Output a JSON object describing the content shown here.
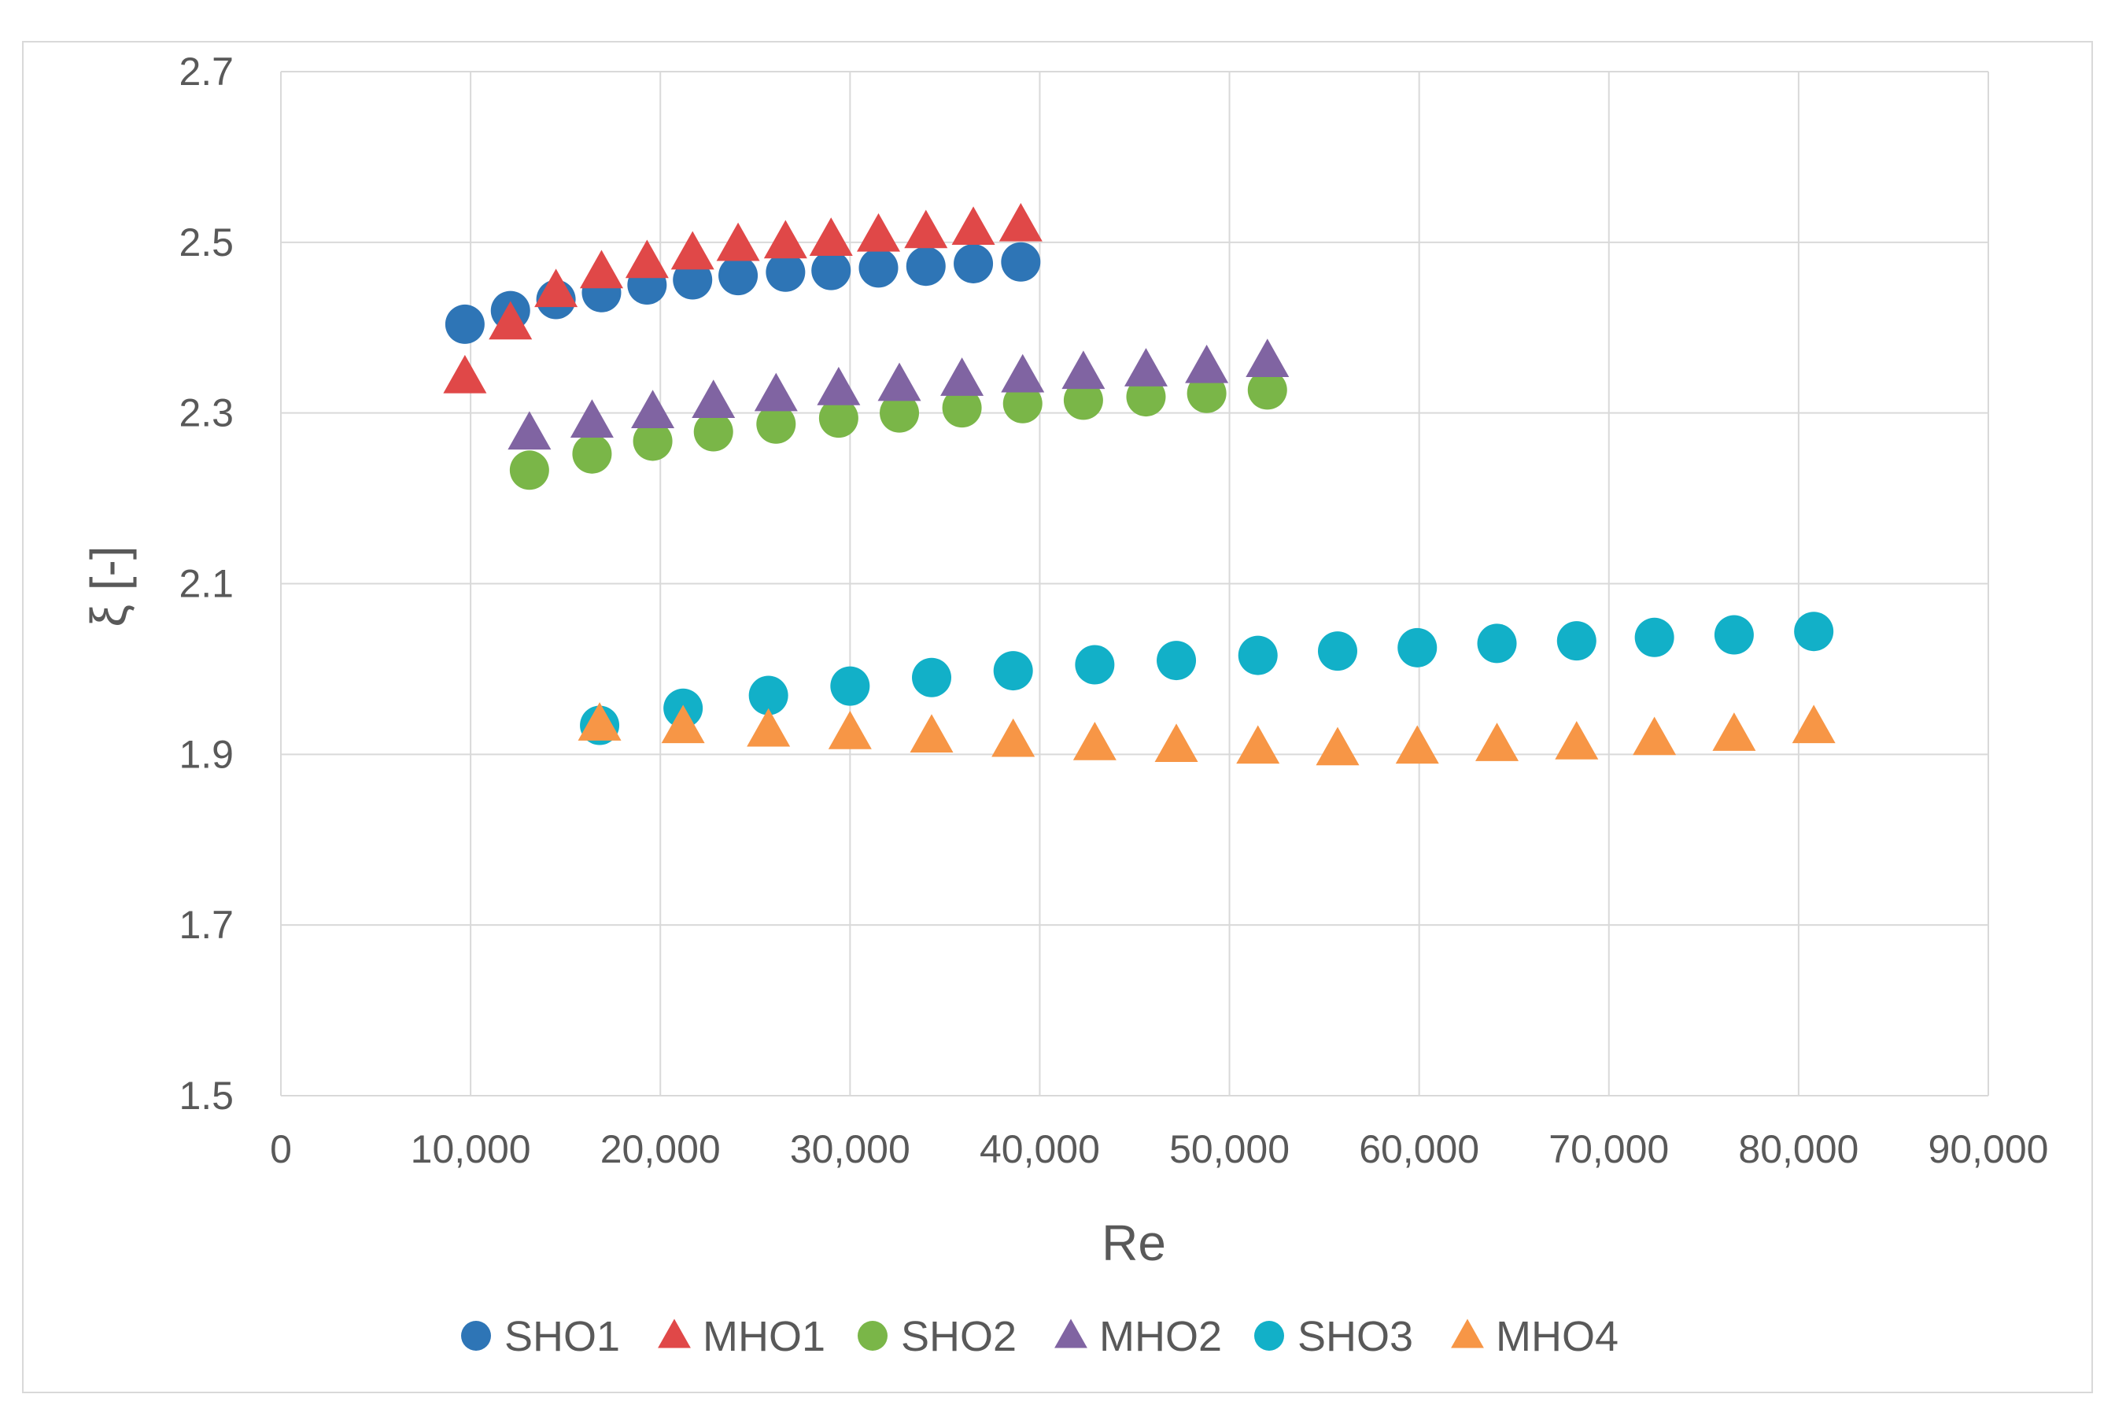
{
  "chart_data": {
    "type": "scatter",
    "title": "",
    "xlabel": "Re",
    "ylabel": "ξ [-]",
    "xlim": [
      0,
      90000
    ],
    "ylim": [
      1.5,
      2.7
    ],
    "grid": true,
    "legend_position": "bottom",
    "x_ticks": [
      {
        "value": 0,
        "label": "0"
      },
      {
        "value": 10000,
        "label": "10,000"
      },
      {
        "value": 20000,
        "label": "20,000"
      },
      {
        "value": 30000,
        "label": "30,000"
      },
      {
        "value": 40000,
        "label": "40,000"
      },
      {
        "value": 50000,
        "label": "50,000"
      },
      {
        "value": 60000,
        "label": "60,000"
      },
      {
        "value": 70000,
        "label": "70,000"
      },
      {
        "value": 80000,
        "label": "80,000"
      },
      {
        "value": 90000,
        "label": "90,000"
      }
    ],
    "y_ticks": [
      {
        "value": 1.5,
        "label": "1.5"
      },
      {
        "value": 1.7,
        "label": "1.7"
      },
      {
        "value": 1.9,
        "label": "1.9"
      },
      {
        "value": 2.1,
        "label": "2.1"
      },
      {
        "value": 2.3,
        "label": "2.3"
      },
      {
        "value": 2.5,
        "label": "2.5"
      },
      {
        "value": 2.7,
        "label": "2.7"
      }
    ],
    "series": [
      {
        "name": "SHO1",
        "marker": "circle",
        "color": "#2E75B6",
        "x": [
          9700,
          12100,
          14500,
          16900,
          19300,
          21700,
          24100,
          26600,
          29000,
          31500,
          34000,
          36500,
          39000
        ],
        "y": [
          2.404,
          2.42,
          2.433,
          2.441,
          2.45,
          2.456,
          2.461,
          2.465,
          2.467,
          2.47,
          2.472,
          2.475,
          2.477
        ]
      },
      {
        "name": "MHO1",
        "marker": "triangle",
        "color": "#E04848",
        "x": [
          9700,
          12100,
          14500,
          16900,
          19300,
          21700,
          24100,
          26600,
          29000,
          31500,
          34000,
          36500,
          39000
        ],
        "y": [
          2.342,
          2.405,
          2.443,
          2.465,
          2.477,
          2.487,
          2.497,
          2.5,
          2.503,
          2.508,
          2.512,
          2.516,
          2.52
        ]
      },
      {
        "name": "SHO2",
        "marker": "circle",
        "color": "#7AB648",
        "x": [
          13100,
          16400,
          19600,
          22800,
          26100,
          29400,
          32600,
          35900,
          39100,
          42300,
          45600,
          48800,
          52000
        ],
        "y": [
          2.233,
          2.252,
          2.267,
          2.278,
          2.287,
          2.294,
          2.3,
          2.306,
          2.311,
          2.315,
          2.319,
          2.323,
          2.327
        ]
      },
      {
        "name": "MHO2",
        "marker": "triangle",
        "color": "#8064A2",
        "x": [
          13100,
          16400,
          19600,
          22800,
          26100,
          29400,
          32600,
          35900,
          39100,
          42300,
          45600,
          48800,
          52000
        ],
        "y": [
          2.276,
          2.29,
          2.301,
          2.313,
          2.321,
          2.328,
          2.333,
          2.339,
          2.343,
          2.347,
          2.35,
          2.354,
          2.361
        ]
      },
      {
        "name": "SHO3",
        "marker": "circle",
        "color": "#12B0C8",
        "x": [
          16800,
          21200,
          25700,
          30000,
          34300,
          38600,
          42900,
          47200,
          51500,
          55700,
          59900,
          64100,
          68300,
          72400,
          76600,
          80800
        ],
        "y": [
          1.934,
          1.954,
          1.969,
          1.98,
          1.99,
          1.998,
          2.005,
          2.01,
          2.016,
          2.021,
          2.025,
          2.03,
          2.033,
          2.037,
          2.04,
          2.044
        ]
      },
      {
        "name": "MHO4",
        "marker": "triangle",
        "color": "#F79646",
        "x": [
          16800,
          21200,
          25700,
          30000,
          34300,
          38600,
          42900,
          47200,
          51500,
          55700,
          59900,
          64100,
          68300,
          72400,
          76600,
          80800
        ],
        "y": [
          1.935,
          1.932,
          1.928,
          1.925,
          1.921,
          1.916,
          1.912,
          1.91,
          1.908,
          1.906,
          1.908,
          1.911,
          1.913,
          1.918,
          1.923,
          1.932
        ]
      }
    ]
  }
}
